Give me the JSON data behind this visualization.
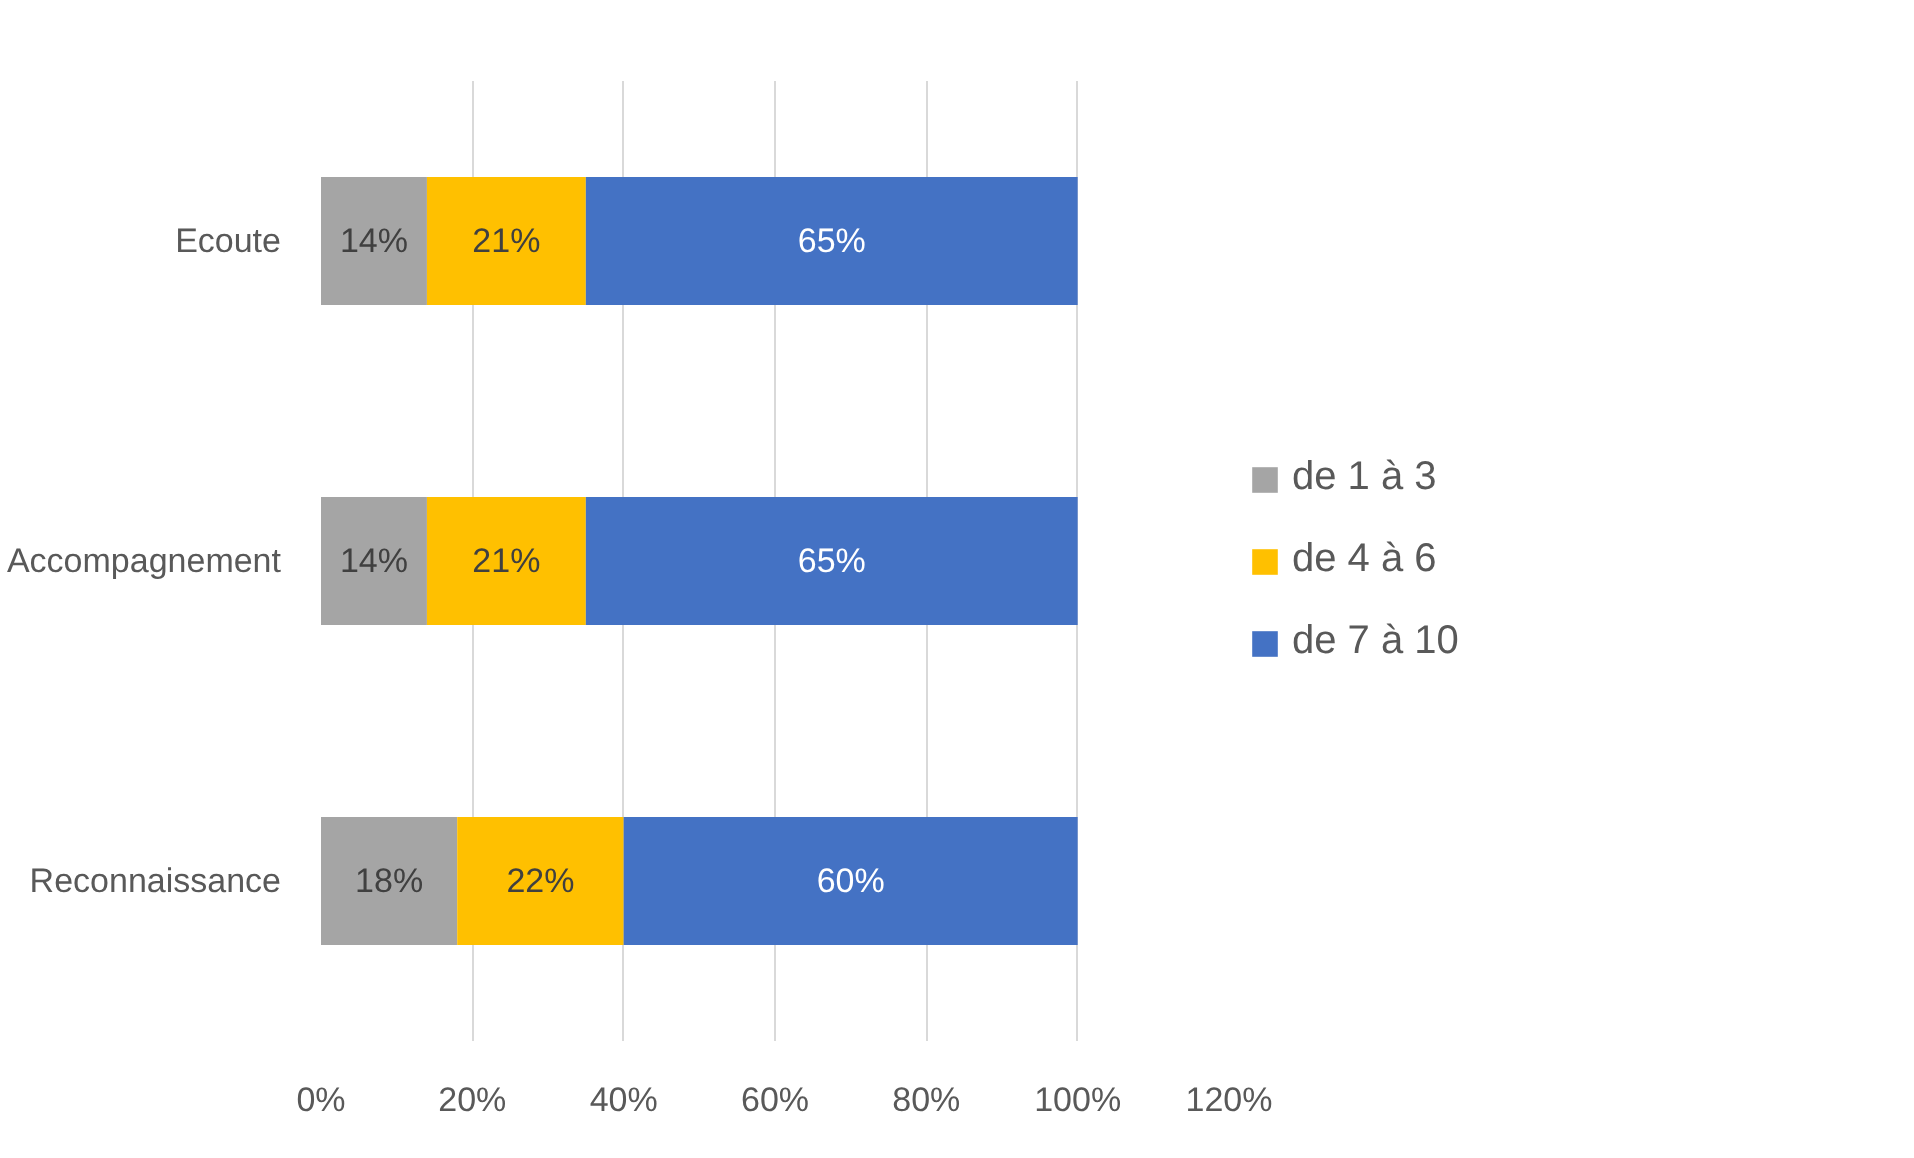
{
  "chart_data": {
    "type": "bar",
    "orientation": "horizontal",
    "stacked": true,
    "categories": [
      "Ecoute",
      "Accompagnement",
      "Reconnaissance"
    ],
    "series": [
      {
        "name": "de 1 à 3",
        "color": "#a5a5a5",
        "values": [
          14,
          14,
          18
        ],
        "value_labels": [
          "14%",
          "14%",
          "18%"
        ]
      },
      {
        "name": "de 4 à 6",
        "color": "#ffc000",
        "values": [
          21,
          21,
          22
        ],
        "value_labels": [
          "21%",
          "21%",
          "22%"
        ]
      },
      {
        "name": "de 7 à 10",
        "color": "#4472c4",
        "values": [
          65,
          65,
          60
        ],
        "value_labels": [
          "65%",
          "65%",
          "60%"
        ]
      }
    ],
    "xlim": [
      0,
      120
    ],
    "xticks": [
      {
        "value": 0,
        "label": "0%"
      },
      {
        "value": 20,
        "label": "20%"
      },
      {
        "value": 40,
        "label": "40%"
      },
      {
        "value": 60,
        "label": "60%"
      },
      {
        "value": 80,
        "label": "80%"
      },
      {
        "value": 100,
        "label": "100%"
      },
      {
        "value": 120,
        "label": "120%"
      }
    ],
    "grid": "x",
    "legend": "right"
  }
}
